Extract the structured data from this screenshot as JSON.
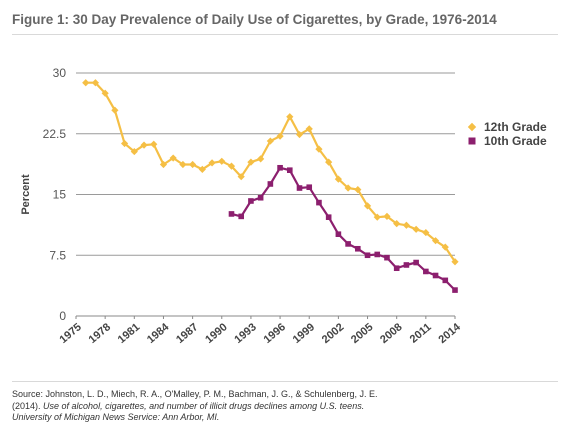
{
  "figure": {
    "title": "Figure 1: 30 Day Prevalence of Daily Use of Cigarettes, by Grade, 1976-2014"
  },
  "chart_data": {
    "type": "line",
    "title": "Figure 1: 30 Day Prevalence of Daily Use of Cigarettes, by Grade, 1976-2014",
    "xlabel": "",
    "ylabel": "Percent",
    "xlim": [
      1975,
      2014
    ],
    "ylim": [
      0,
      30
    ],
    "x_ticks": [
      "1975",
      "1978",
      "1981",
      "1984",
      "1987",
      "1990",
      "1993",
      "1996",
      "1999",
      "2002",
      "2005",
      "2008",
      "2011",
      "2014"
    ],
    "y_ticks": [
      "0",
      "7.5",
      "15",
      "22.5",
      "30"
    ],
    "grid": "horizontal",
    "legend_position": "right",
    "series": [
      {
        "name": "12th Grade",
        "color": "#f5bf45",
        "marker": "diamond",
        "x": [
          1976,
          1977,
          1978,
          1979,
          1980,
          1981,
          1982,
          1983,
          1984,
          1985,
          1986,
          1987,
          1988,
          1989,
          1990,
          1991,
          1992,
          1993,
          1994,
          1995,
          1996,
          1997,
          1998,
          1999,
          2000,
          2001,
          2002,
          2003,
          2004,
          2005,
          2006,
          2007,
          2008,
          2009,
          2010,
          2011,
          2012,
          2013,
          2014
        ],
        "values": [
          28.8,
          28.8,
          27.5,
          25.4,
          21.3,
          20.3,
          21.1,
          21.2,
          18.7,
          19.5,
          18.7,
          18.7,
          18.1,
          18.9,
          19.1,
          18.5,
          17.2,
          19.0,
          19.4,
          21.6,
          22.2,
          24.6,
          22.4,
          23.1,
          20.6,
          19.0,
          16.9,
          15.8,
          15.6,
          13.6,
          12.2,
          12.3,
          11.4,
          11.2,
          10.7,
          10.3,
          9.3,
          8.5,
          6.7
        ]
      },
      {
        "name": "10th Grade",
        "color": "#8c1f6e",
        "marker": "square",
        "x": [
          1991,
          1992,
          1993,
          1994,
          1995,
          1996,
          1997,
          1998,
          1999,
          2000,
          2001,
          2002,
          2003,
          2004,
          2005,
          2006,
          2007,
          2008,
          2009,
          2010,
          2011,
          2012,
          2013,
          2014
        ],
        "values": [
          12.6,
          12.3,
          14.2,
          14.6,
          16.3,
          18.3,
          18.0,
          15.8,
          15.9,
          14.0,
          12.2,
          10.1,
          8.9,
          8.3,
          7.5,
          7.6,
          7.2,
          5.9,
          6.3,
          6.6,
          5.5,
          5.0,
          4.4,
          3.2
        ]
      }
    ]
  },
  "source": {
    "line1": "Source: Johnston, L. D., Miech, R. A., O'Malley, P. M., Bachman, J. G., & Schulenberg, J. E.",
    "line2_year": "(2014). ",
    "line2_title": "Use of alcohol, cigarettes, and number of illicit drugs declines among U.S. teens.",
    "line3": "University of Michigan News Service: Ann Arbor, MI."
  }
}
